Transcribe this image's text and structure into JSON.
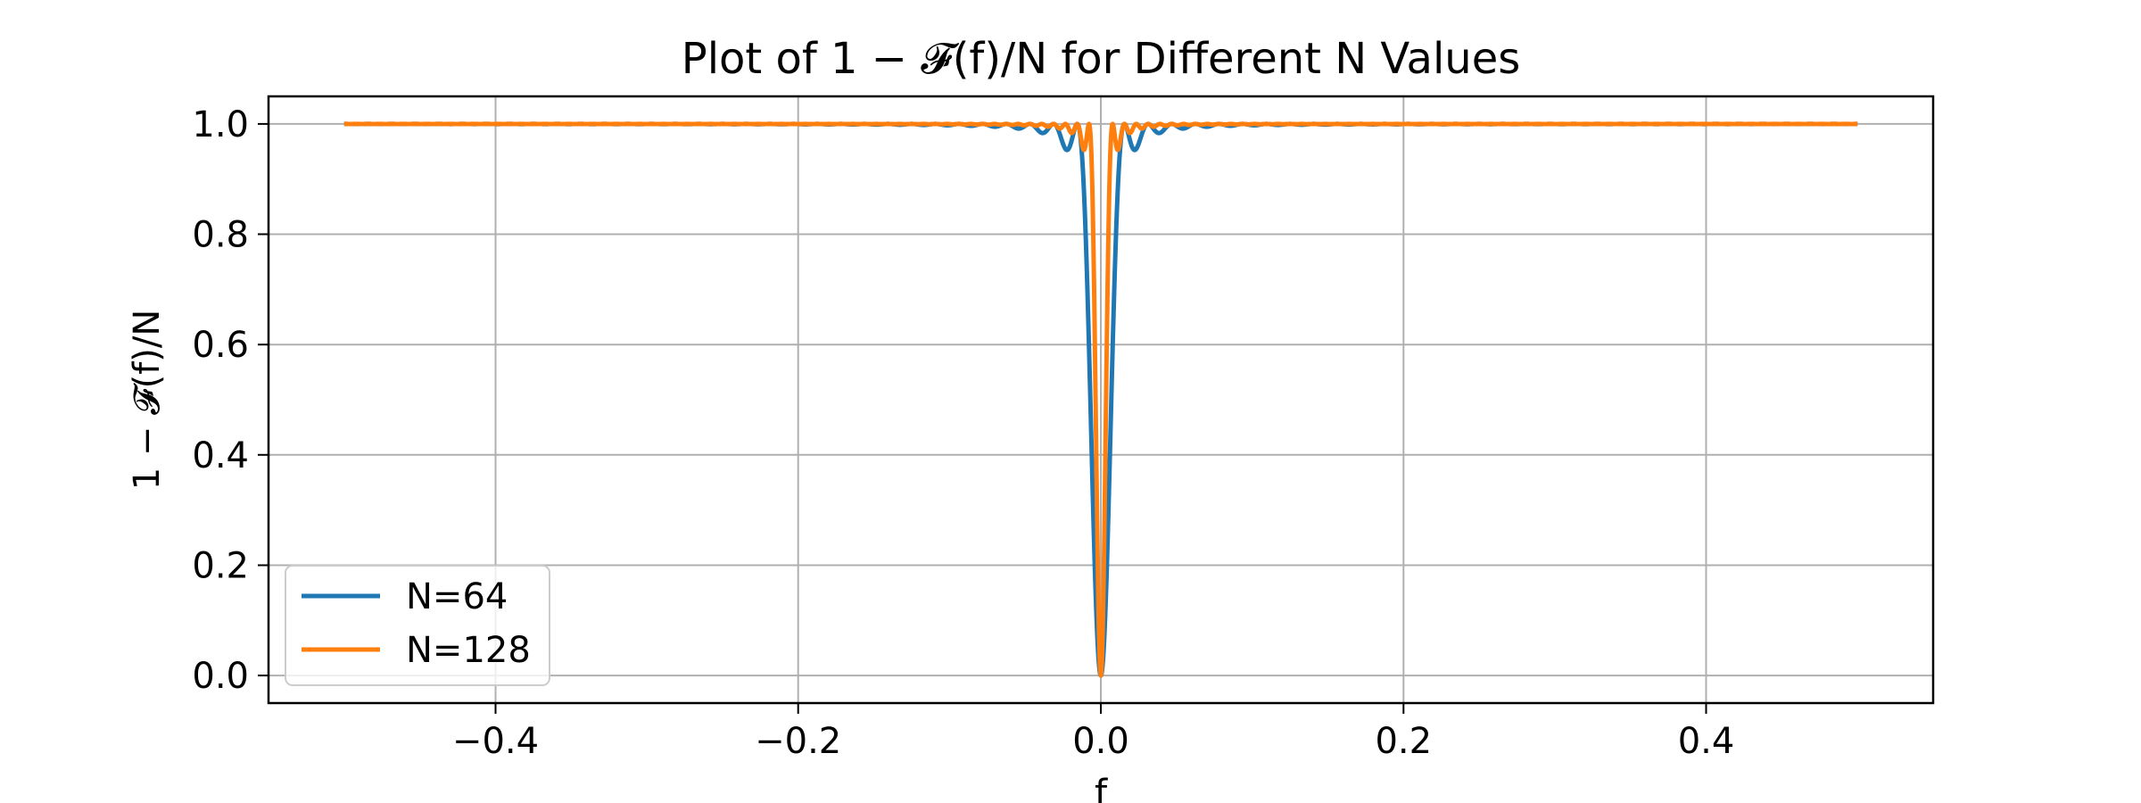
{
  "chart_data": {
    "type": "line",
    "title": "Plot of 1 − 𝓕(f)/N for Different N Values",
    "xlabel": "f",
    "ylabel": "1 − 𝓕(f)/N",
    "xlim": [
      -0.55,
      0.55
    ],
    "ylim": [
      -0.05,
      1.05
    ],
    "x_ticks": [
      -0.4,
      -0.2,
      0.0,
      0.2,
      0.4
    ],
    "x_tick_labels": [
      "−0.4",
      "−0.2",
      "0.0",
      "0.2",
      "0.4"
    ],
    "y_ticks": [
      0.0,
      0.2,
      0.4,
      0.6,
      0.8,
      1.0
    ],
    "y_tick_labels": [
      "0.0",
      "0.2",
      "0.4",
      "0.6",
      "0.8",
      "1.0"
    ],
    "grid": true,
    "legend_position": "lower-left",
    "f_range": [
      -0.5,
      0.5
    ],
    "series": [
      {
        "name": "N=64",
        "N": 64,
        "color": "#1f77b4"
      },
      {
        "name": "N=128",
        "N": 128,
        "color": "#ff7f0e"
      }
    ]
  }
}
